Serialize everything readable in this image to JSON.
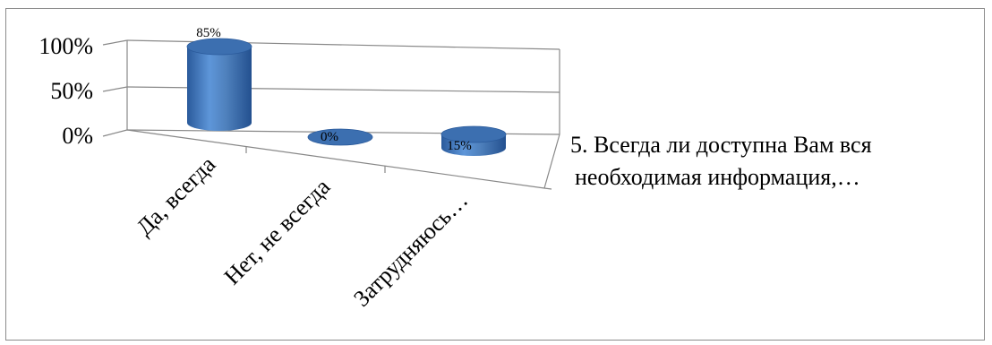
{
  "chart_data": {
    "type": "bar",
    "style": "3d-cylinder",
    "categories": [
      "Да, всегда",
      "Нет, не всегда",
      "Затрудняюсь…"
    ],
    "series": [
      {
        "name": "5. Всегда ли доступна Вам вся необходимая информация,…",
        "values": [
          85,
          0,
          15
        ]
      }
    ],
    "data_labels": [
      "85%",
      "0%",
      "15%"
    ],
    "y_ticks": [
      "100%",
      "50%",
      "0%"
    ],
    "ylim": [
      0,
      100
    ],
    "grid": true,
    "legend_position": "right",
    "legend_lines": [
      "5. Всегда ли доступна Вам вся",
      "необходимая информация,…"
    ],
    "colors": {
      "bar": "#4f81bd",
      "bar_dark": "#2a5a9b",
      "bar_top": "#3c6fb0"
    }
  }
}
